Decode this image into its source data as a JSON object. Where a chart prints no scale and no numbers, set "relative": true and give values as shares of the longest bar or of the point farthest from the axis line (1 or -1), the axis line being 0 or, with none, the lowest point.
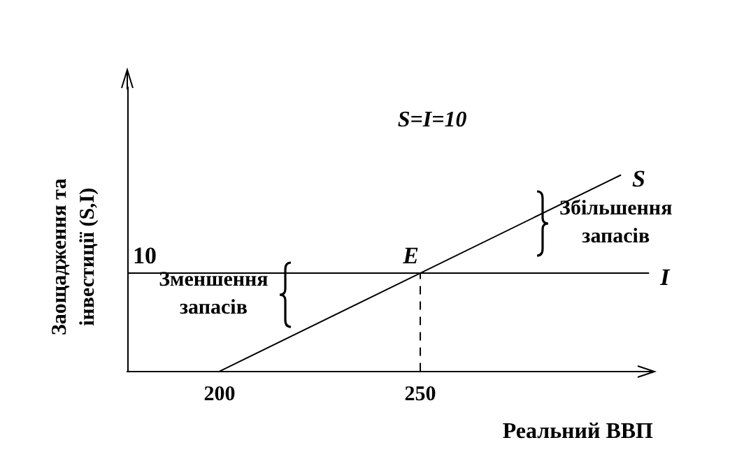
{
  "chart_data": {
    "type": "line",
    "relative": true,
    "xlabel": "Реальний ВВП",
    "ylabel": "Заощадження та інвестиції (S,I)",
    "xlim": [
      177,
      308
    ],
    "xticks": [
      200,
      250
    ],
    "grid": false,
    "legend": false,
    "marker": "none",
    "series": [
      {
        "name": "S",
        "color": "#000000",
        "x": [
          200,
          300
        ],
        "values": [
          0,
          1
        ]
      },
      {
        "name": "I",
        "color": "#000000",
        "x": [
          177,
          307
        ],
        "values": [
          0.5,
          0.5
        ]
      },
      {
        "color": "#000000",
        "x": [
          250,
          250
        ],
        "values": [
          0,
          0.5
        ],
        "line_style": "dashed"
      }
    ],
    "annotations": [
      "S=I=10",
      "Зменшення запасів",
      "Збільшення запасів",
      {
        "text": "E",
        "x": 250,
        "y": 0.5
      },
      {
        "text": "10",
        "x": 177,
        "y": 0.5
      }
    ]
  }
}
